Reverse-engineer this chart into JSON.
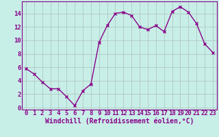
{
  "x": [
    0,
    1,
    2,
    3,
    4,
    5,
    6,
    7,
    8,
    9,
    10,
    11,
    12,
    13,
    14,
    15,
    16,
    17,
    18,
    19,
    20,
    21,
    22,
    23
  ],
  "y": [
    5.8,
    5.0,
    3.8,
    2.8,
    2.8,
    1.6,
    0.3,
    2.5,
    3.5,
    9.7,
    12.2,
    14.0,
    14.2,
    13.7,
    12.0,
    11.6,
    12.2,
    11.3,
    14.3,
    15.0,
    14.2,
    12.5,
    9.5,
    8.2
  ],
  "line_color": "#880088",
  "marker": "x",
  "marker_size": 3,
  "bg_color": "#c8eee8",
  "grid_color": "#b0c8c0",
  "xlabel": "Windchill (Refroidissement éolien,°C)",
  "xlabel_fontsize": 7,
  "xtick_labels": [
    "0",
    "1",
    "2",
    "3",
    "4",
    "5",
    "6",
    "7",
    "8",
    "9",
    "10",
    "11",
    "12",
    "13",
    "14",
    "15",
    "16",
    "17",
    "18",
    "19",
    "20",
    "21",
    "22",
    "23"
  ],
  "ytick_values": [
    0,
    2,
    4,
    6,
    8,
    10,
    12,
    14
  ],
  "ylim": [
    -0.3,
    15.8
  ],
  "xlim": [
    -0.5,
    23.5
  ],
  "tick_color": "#880088",
  "tick_fontsize": 6.5,
  "linewidth": 1.0
}
